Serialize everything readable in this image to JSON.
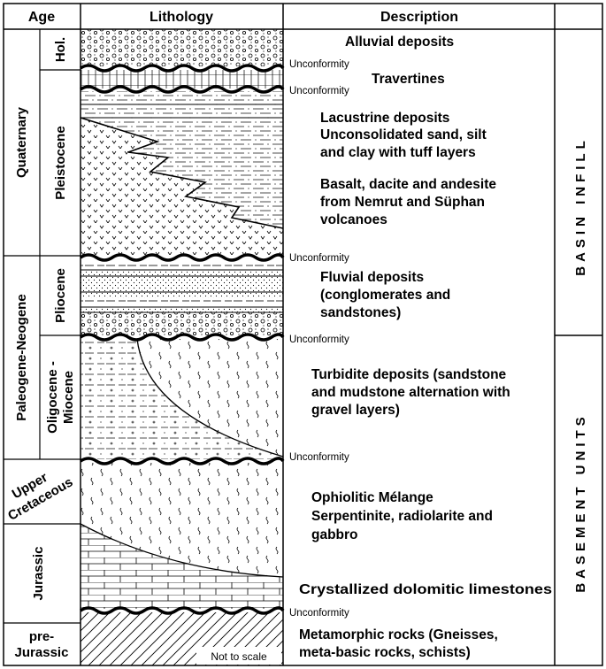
{
  "headers": {
    "age": "Age",
    "lithology": "Lithology",
    "description": "Description"
  },
  "ages": {
    "quaternary": "Quaternary",
    "holocene": "Hol.",
    "pleistocene": "Pleistocene",
    "paleogene_neogene": "Paleogene-Neogene",
    "pliocene": "Pliocene",
    "oligocene_miocene_line1": "Oligocene -",
    "oligocene_miocene_line2": "Miocene",
    "upper_cretaceous_line1": "Upper",
    "upper_cretaceous_line2": "Cretaceous",
    "jurassic": "Jurassic",
    "pre_jurassic_line1": "pre-",
    "pre_jurassic_line2": "Jurassic"
  },
  "descriptions": {
    "alluvial": "Alluvial deposits",
    "travertines": "Travertines",
    "lacustrine_line1": "Lacustrine deposits",
    "lacustrine_line2": "Unconsolidated sand, silt",
    "lacustrine_line3": "and clay with tuff layers",
    "basalt_line1": "Basalt, dacite and andesite",
    "basalt_line2": "from Nemrut and Süphan",
    "basalt_line3": "volcanoes",
    "fluvial_line1": "Fluvial deposits",
    "fluvial_line2": "(conglomerates and",
    "fluvial_line3": "sandstones)",
    "turbidite_line1": "Turbidite deposits (sandstone",
    "turbidite_line2": "and mudstone alternation with",
    "turbidite_line3": "gravel layers)",
    "ophiolitic_line1": "Ophiolitic Mélange",
    "ophiolitic_line2": "Serpentinite, radiolarite and",
    "ophiolitic_line3": "gabbro",
    "limestone": "Crystallized dolomitic limestones",
    "metamorphic_line1": "Metamorphic rocks (Gneisses,",
    "metamorphic_line2": "meta-basic rocks, schists)"
  },
  "unconformities": {
    "u1": "Unconformity",
    "u2": "Unconformity",
    "u3": "Unconformity",
    "u4": "Unconformity",
    "u5": "Unconformity",
    "u6": "Unconformity"
  },
  "side_labels": {
    "basin_infill": "BASIN  INFILL",
    "basement_units": "BASEMENT  UNITS"
  },
  "note": "Not to scale"
}
